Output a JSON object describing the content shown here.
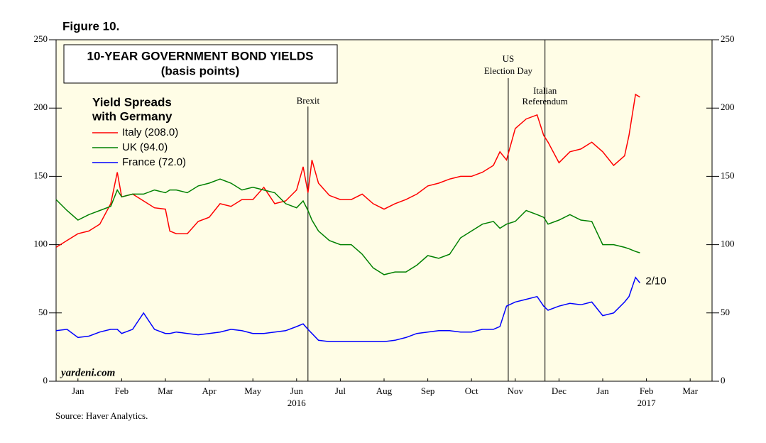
{
  "chart_data": {
    "type": "line",
    "figure_label": "Figure 10.",
    "title": "10-YEAR GOVERNMENT BOND YIELDS",
    "subtitle": "(basis points)",
    "legend_title": [
      "Yield Spreads",
      "with Germany"
    ],
    "source": "Source: Haver Analytics.",
    "watermark": "yardeni.com",
    "x": [
      0,
      0.25,
      0.5,
      0.75,
      1,
      1.25,
      1.4,
      1.5,
      1.75,
      2,
      2.25,
      2.5,
      2.6,
      2.75,
      3,
      3.25,
      3.5,
      3.75,
      4,
      4.25,
      4.5,
      4.75,
      5,
      5.25,
      5.5,
      5.65,
      5.76,
      5.85,
      6,
      6.25,
      6.5,
      6.75,
      7,
      7.25,
      7.5,
      7.75,
      8,
      8.25,
      8.5,
      8.75,
      9,
      9.25,
      9.5,
      9.75,
      10,
      10.15,
      10.3,
      10.5,
      10.75,
      11,
      11.15,
      11.25,
      11.5,
      11.75,
      12,
      12.25,
      12.5,
      12.75,
      13,
      13.1,
      13.25,
      13.35
    ],
    "series": [
      {
        "name": "Italy (208.0)",
        "color": "#ff0000",
        "values": [
          98,
          103,
          108,
          110,
          115,
          130,
          153,
          135,
          137,
          132,
          127,
          126,
          110,
          108,
          108,
          117,
          120,
          130,
          128,
          133,
          133,
          142,
          130,
          132,
          140,
          157,
          138,
          162,
          145,
          136,
          133,
          133,
          137,
          130,
          126,
          130,
          133,
          137,
          143,
          145,
          148,
          150,
          150,
          153,
          158,
          168,
          162,
          185,
          192,
          195,
          180,
          175,
          160,
          168,
          170,
          175,
          168,
          158,
          165,
          180,
          210,
          208
        ]
      },
      {
        "name": "UK (94.0)",
        "color": "#008000",
        "values": [
          133,
          125,
          118,
          122,
          125,
          128,
          140,
          135,
          137,
          137,
          140,
          138,
          140,
          140,
          138,
          143,
          145,
          148,
          145,
          140,
          142,
          140,
          138,
          130,
          127,
          132,
          125,
          118,
          110,
          103,
          100,
          100,
          93,
          83,
          78,
          80,
          80,
          85,
          92,
          90,
          93,
          105,
          110,
          115,
          117,
          112,
          115,
          117,
          125,
          122,
          120,
          115,
          118,
          122,
          118,
          117,
          100,
          100,
          98,
          97,
          95,
          94
        ]
      },
      {
        "name": "France (72.0)",
        "color": "#0000ff",
        "values": [
          37,
          38,
          32,
          33,
          36,
          38,
          38,
          35,
          38,
          50,
          38,
          35,
          35,
          36,
          35,
          34,
          35,
          36,
          38,
          37,
          35,
          35,
          36,
          37,
          40,
          42,
          38,
          35,
          30,
          29,
          29,
          29,
          29,
          29,
          29,
          30,
          32,
          35,
          36,
          37,
          37,
          36,
          36,
          38,
          38,
          40,
          55,
          58,
          60,
          62,
          55,
          52,
          55,
          57,
          56,
          58,
          48,
          50,
          58,
          62,
          76,
          72
        ]
      }
    ],
    "end_label": "2/10",
    "events": [
      {
        "x": 5.76,
        "lines": [
          "Brexit"
        ]
      },
      {
        "x": 10.34,
        "lines": [
          "US",
          "Election Day"
        ]
      },
      {
        "x": 11.18,
        "lines": [
          "Italian",
          "Referendum"
        ]
      }
    ],
    "xlim": [
      0,
      15
    ],
    "xticks": [
      {
        "value": 0.5,
        "label": "Jan"
      },
      {
        "value": 1.5,
        "label": "Feb"
      },
      {
        "value": 2.5,
        "label": "Mar"
      },
      {
        "value": 3.5,
        "label": "Apr"
      },
      {
        "value": 4.5,
        "label": "May"
      },
      {
        "value": 5.5,
        "label": "Jun"
      },
      {
        "value": 6.5,
        "label": "Jul"
      },
      {
        "value": 7.5,
        "label": "Aug"
      },
      {
        "value": 8.5,
        "label": "Sep"
      },
      {
        "value": 9.5,
        "label": "Oct"
      },
      {
        "value": 10.5,
        "label": "Nov"
      },
      {
        "value": 11.5,
        "label": "Dec"
      },
      {
        "value": 12.5,
        "label": "Jan"
      },
      {
        "value": 13.5,
        "label": "Feb"
      },
      {
        "value": 14.5,
        "label": "Mar"
      }
    ],
    "year_labels": [
      {
        "value": 5.5,
        "label": "2016"
      },
      {
        "value": 13.5,
        "label": "2017"
      }
    ],
    "ylim": [
      0,
      250
    ],
    "yticks": [
      0,
      50,
      100,
      150,
      200,
      250
    ],
    "y2lim": [
      0,
      250
    ],
    "y2ticks": [
      0,
      50,
      100,
      150,
      200,
      250
    ],
    "background": "#fffde6"
  }
}
